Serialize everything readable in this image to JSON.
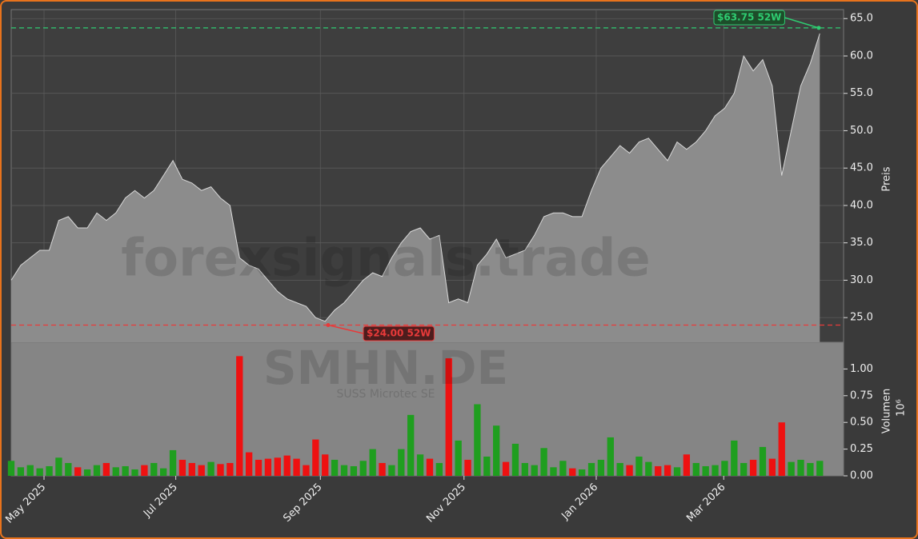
{
  "chart_data": [
    {
      "type": "area",
      "y_label": "Preis",
      "color": "#8c8c8c",
      "line_color": "#d8d8d8",
      "grid": true,
      "values": [
        30,
        32,
        33,
        34,
        34,
        38,
        38.5,
        37,
        37,
        39,
        38,
        39,
        41,
        42,
        41,
        42,
        44,
        46,
        43.5,
        43,
        42,
        42.5,
        41,
        40,
        33,
        32,
        31.5,
        30,
        28.5,
        27.5,
        27,
        26.5,
        25,
        24.5,
        26,
        27,
        28.5,
        30,
        31,
        30.5,
        33,
        35,
        36.5,
        37,
        35.5,
        36,
        27,
        27.5,
        27,
        32,
        33.5,
        35.5,
        33,
        33.5,
        34,
        36,
        38.5,
        39,
        39,
        38.5,
        38.5,
        42,
        45,
        46.5,
        48,
        47,
        48.5,
        49,
        47.5,
        46,
        48.5,
        47.5,
        48.5,
        50,
        52,
        53,
        55,
        60,
        58,
        59.5,
        56,
        44,
        50,
        56,
        59,
        63
      ],
      "xlim": [
        0,
        87.5
      ],
      "xticks": [
        {
          "value": 3.45,
          "label": "May 2025"
        },
        {
          "value": 17.3,
          "label": "Jul 2025"
        },
        {
          "value": 32.5,
          "label": "Sep 2025"
        },
        {
          "value": 47.6,
          "label": "Nov 2025"
        },
        {
          "value": 61.5,
          "label": "Jan 2026"
        },
        {
          "value": 74.9,
          "label": "Mar 2026"
        }
      ],
      "ylim": [
        21.7,
        66.2
      ],
      "yticks": [
        {
          "value": 25,
          "label": "25.0"
        },
        {
          "value": 30,
          "label": "30.0"
        },
        {
          "value": 35,
          "label": "35.0"
        },
        {
          "value": 40,
          "label": "40.0"
        },
        {
          "value": 45,
          "label": "45.0"
        },
        {
          "value": 50,
          "label": "50.0"
        },
        {
          "value": 55,
          "label": "55.0"
        },
        {
          "value": 60,
          "label": "60.0"
        },
        {
          "value": 65,
          "label": "65.0"
        }
      ],
      "annotations": [
        {
          "value": 63.75,
          "label": "$63.75 52W",
          "color": "#2ecc71"
        },
        {
          "value": 24.0,
          "label": "$24.00 52W",
          "color": "#e83a3a"
        }
      ],
      "watermarks": [
        "forexsignals.trade",
        "SMHN.DE",
        "SUSS Microtec SE"
      ]
    },
    {
      "type": "bar",
      "y_label": "Volumen",
      "scale_label": "10⁶",
      "up_color": "#1f9e1f",
      "down_color": "#ee1111",
      "values": [
        0.14,
        0.08,
        0.1,
        0.07,
        0.09,
        0.17,
        0.12,
        0.08,
        0.06,
        0.1,
        0.12,
        0.08,
        0.09,
        0.06,
        0.1,
        0.12,
        0.07,
        0.24,
        0.15,
        0.12,
        0.1,
        0.13,
        0.11,
        0.12,
        1.12,
        0.22,
        0.15,
        0.16,
        0.17,
        0.19,
        0.16,
        0.1,
        0.34,
        0.2,
        0.15,
        0.1,
        0.09,
        0.14,
        0.25,
        0.12,
        0.1,
        0.25,
        0.57,
        0.2,
        0.16,
        0.12,
        1.1,
        0.33,
        0.15,
        0.67,
        0.18,
        0.47,
        0.13,
        0.3,
        0.12,
        0.1,
        0.26,
        0.08,
        0.14,
        0.07,
        0.06,
        0.12,
        0.15,
        0.36,
        0.12,
        0.1,
        0.18,
        0.13,
        0.09,
        0.1,
        0.08,
        0.2,
        0.12,
        0.09,
        0.1,
        0.14,
        0.33,
        0.12,
        0.15,
        0.27,
        0.16,
        0.5,
        0.13,
        0.15,
        0.12,
        0.14
      ],
      "ylim": [
        0,
        1.25
      ],
      "yticks": [
        {
          "value": 0,
          "label": "0.00"
        },
        {
          "value": 0.25,
          "label": "0.25"
        },
        {
          "value": 0.5,
          "label": "0.50"
        },
        {
          "value": 0.75,
          "label": "0.75"
        },
        {
          "value": 1,
          "label": "1.00"
        }
      ]
    }
  ]
}
